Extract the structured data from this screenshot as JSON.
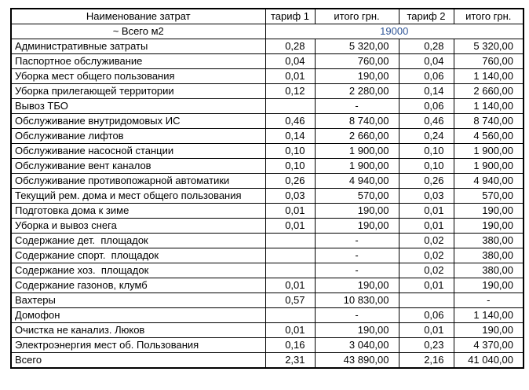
{
  "table": {
    "columns": [
      "Наименование затрат",
      "тариф 1",
      "итого грн.",
      "тариф 2",
      "итого грн."
    ],
    "area_row": {
      "label": "~ Всего м2",
      "value": "19000"
    },
    "rows": [
      {
        "name": "Административные затраты",
        "tariff1": "0,28",
        "total1": "5 320,00",
        "tariff2": "0,28",
        "total2": "5 320,00"
      },
      {
        "name": "Паспортное обслуживание",
        "tariff1": "0,04",
        "total1": "760,00",
        "tariff2": "0,04",
        "total2": "760,00"
      },
      {
        "name": "Уборка мест общего пользования",
        "tariff1": "0,01",
        "total1": "190,00",
        "tariff2": "0,06",
        "total2": "1 140,00"
      },
      {
        "name": "Уборка прилегающей территории",
        "tariff1": "0,12",
        "total1": "2 280,00",
        "tariff2": "0,14",
        "total2": "2 660,00"
      },
      {
        "name": "Вывоз ТБО",
        "tariff1": "",
        "total1": "-",
        "tariff2": "0,06",
        "total2": "1 140,00"
      },
      {
        "name": "Обслуживание внутридомовых ИС",
        "tariff1": "0,46",
        "total1": "8 740,00",
        "tariff2": "0,46",
        "total2": "8 740,00"
      },
      {
        "name": "Обслуживание лифтов",
        "tariff1": "0,14",
        "total1": "2 660,00",
        "tariff2": "0,24",
        "total2": "4 560,00"
      },
      {
        "name": "Обслуживание насосной станции",
        "tariff1": "0,10",
        "total1": "1 900,00",
        "tariff2": "0,10",
        "total2": "1 900,00"
      },
      {
        "name": "Обслуживание вент каналов",
        "tariff1": "0,10",
        "total1": "1 900,00",
        "tariff2": "0,10",
        "total2": "1 900,00"
      },
      {
        "name": "Обслуживание противопожарной автоматики",
        "tariff1": "0,26",
        "total1": "4 940,00",
        "tariff2": "0,26",
        "total2": "4 940,00"
      },
      {
        "name": "Текущий рем. дома и мест общего пользования",
        "tariff1": "0,03",
        "total1": "570,00",
        "tariff2": "0,03",
        "total2": "570,00"
      },
      {
        "name": "Подготовка дома к зиме",
        "tariff1": "0,01",
        "total1": "190,00",
        "tariff2": "0,01",
        "total2": "190,00"
      },
      {
        "name": "Уборка и вывоз снега",
        "tariff1": "0,01",
        "total1": "190,00",
        "tariff2": "0,01",
        "total2": "190,00"
      },
      {
        "name": "Содержание дет.  площадок",
        "tariff1": "",
        "total1": "-",
        "tariff2": "0,02",
        "total2": "380,00"
      },
      {
        "name": "Содержание спорт.  площадок",
        "tariff1": "",
        "total1": "-",
        "tariff2": "0,02",
        "total2": "380,00"
      },
      {
        "name": "Содержание хоз.  площадок",
        "tariff1": "",
        "total1": "-",
        "tariff2": "0,02",
        "total2": "380,00"
      },
      {
        "name": "Содержание газонов, клумб",
        "tariff1": "0,01",
        "total1": "190,00",
        "tariff2": "0,01",
        "total2": "190,00"
      },
      {
        "name": "Вахтеры",
        "tariff1": "0,57",
        "total1": "10 830,00",
        "tariff2": "",
        "total2": "-"
      },
      {
        "name": "Домофон",
        "tariff1": "",
        "total1": "-",
        "tariff2": "0,06",
        "total2": "1 140,00"
      },
      {
        "name": "Очистка не канализ. Люков",
        "tariff1": "0,01",
        "total1": "190,00",
        "tariff2": "0,01",
        "total2": "190,00"
      },
      {
        "name": "Электроэнергия мест об. Пользования",
        "tariff1": "0,16",
        "total1": "3 040,00",
        "tariff2": "0,23",
        "total2": "4 370,00"
      },
      {
        "name": "Всего",
        "tariff1": "2,31",
        "total1": "43 890,00",
        "tariff2": "2,16",
        "total2": "41 040,00"
      }
    ],
    "colors": {
      "area_value_text": "#2F5597",
      "border": "#000000",
      "text": "#000000",
      "background": "#FFFFFF"
    }
  }
}
